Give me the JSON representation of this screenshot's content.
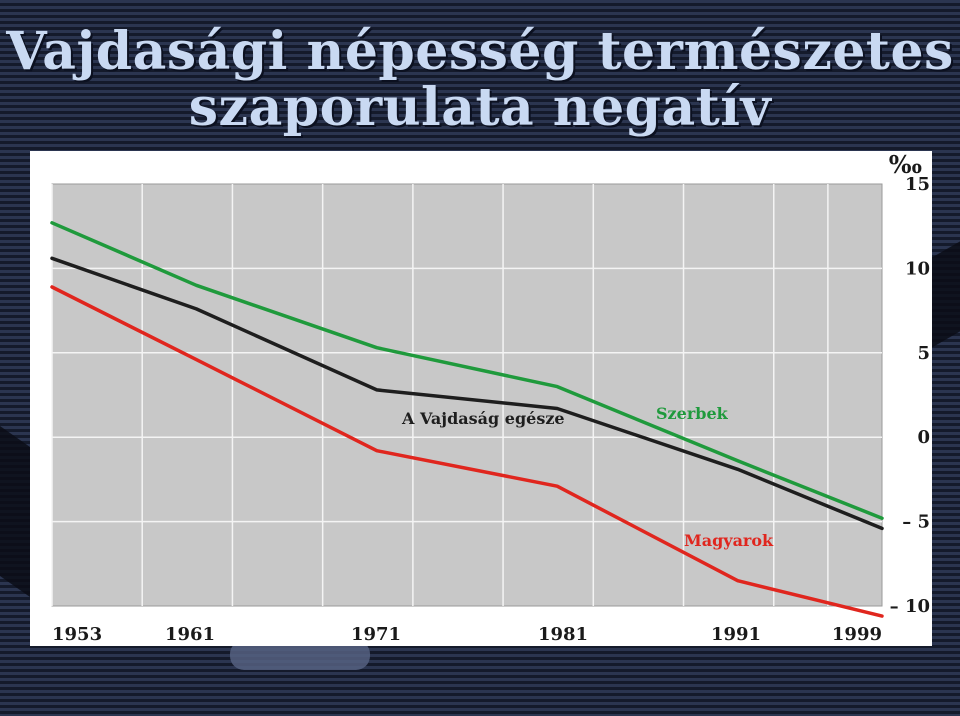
{
  "slide": {
    "title_line1": "Vajdasági népesség természetes",
    "title_line2": "szaporulata negatív"
  },
  "colors": {
    "background": "#1c2236",
    "title": "#c9d9f2",
    "plot_bg": "#c8c8c8",
    "grid": "#f4f4f4",
    "total": "#1e1e1e",
    "serbs": "#1f9a3c",
    "hungarians": "#e0261e"
  },
  "chart_data": {
    "type": "line",
    "title": "Vajdasági népesség természetes szaporulata negatív",
    "unit_label": "‰",
    "x_ticks": [
      "1953",
      "1961",
      "1971",
      "1981",
      "1991",
      "1999"
    ],
    "y_ticks": [
      "15",
      "10",
      "5",
      "0",
      "– 5",
      "– 10"
    ],
    "xlim": [
      1953,
      1999
    ],
    "ylim": [
      -10,
      15
    ],
    "grid": true,
    "series": [
      {
        "name": "Szerbek",
        "color": "#1f9a3c",
        "x": [
          1953,
          1961,
          1971,
          1981,
          1991,
          1999
        ],
        "y": [
          12.7,
          9.0,
          5.3,
          3.0,
          -1.4,
          -4.8
        ]
      },
      {
        "name": "A Vajdaság egésze",
        "color": "#1e1e1e",
        "x": [
          1953,
          1961,
          1971,
          1981,
          1991,
          1999
        ],
        "y": [
          10.6,
          7.6,
          2.8,
          1.7,
          -1.9,
          -5.4
        ]
      },
      {
        "name": "Magyarok",
        "color": "#e0261e",
        "x": [
          1953,
          1961,
          1971,
          1981,
          1991,
          1999
        ],
        "y": [
          8.9,
          4.6,
          -0.8,
          -2.9,
          -8.5,
          -10.6
        ]
      }
    ]
  }
}
